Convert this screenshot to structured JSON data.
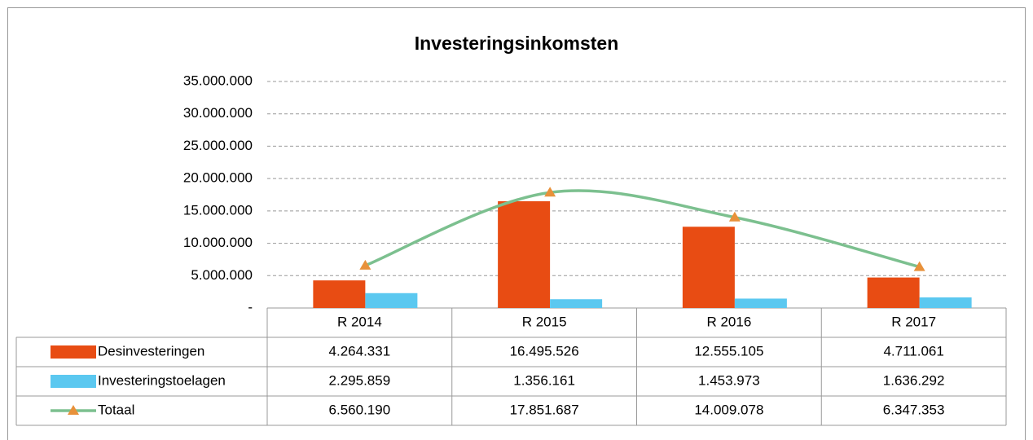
{
  "chart_data": {
    "type": "bar",
    "title": "Investeringsinkomsten",
    "categories": [
      "R 2014",
      "R 2015",
      "R 2016",
      "R 2017"
    ],
    "series": [
      {
        "name": "Desinvesteringen",
        "type": "bar",
        "color": "#e84c13",
        "values": [
          4264331,
          16495526,
          12555105,
          4711061
        ],
        "value_labels": [
          "4.264.331",
          "16.495.526",
          "12.555.105",
          "4.711.061"
        ]
      },
      {
        "name": "Investeringstoelagen",
        "type": "bar",
        "color": "#5bc8f0",
        "values": [
          2295859,
          1356161,
          1453973,
          1636292
        ],
        "value_labels": [
          "2.295.859",
          "1.356.161",
          "1.453.973",
          "1.636.292"
        ]
      },
      {
        "name": "Totaal",
        "type": "line",
        "color": "#7cc08f",
        "marker_color": "#e8913a",
        "values": [
          6560190,
          17851687,
          14009078,
          6347353
        ],
        "value_labels": [
          "6.560.190",
          "17.851.687",
          "14.009.078",
          "6.347.353"
        ]
      }
    ],
    "ylim": [
      0,
      35000000
    ],
    "yticks": [
      {
        "value": 0,
        "label": "-"
      },
      {
        "value": 5000000,
        "label": "5.000.000"
      },
      {
        "value": 10000000,
        "label": "10.000.000"
      },
      {
        "value": 15000000,
        "label": "15.000.000"
      },
      {
        "value": 20000000,
        "label": "20.000.000"
      },
      {
        "value": 25000000,
        "label": "25.000.000"
      },
      {
        "value": 30000000,
        "label": "30.000.000"
      },
      {
        "value": 35000000,
        "label": "35.000.000"
      }
    ],
    "grid": true,
    "data_table": true
  }
}
